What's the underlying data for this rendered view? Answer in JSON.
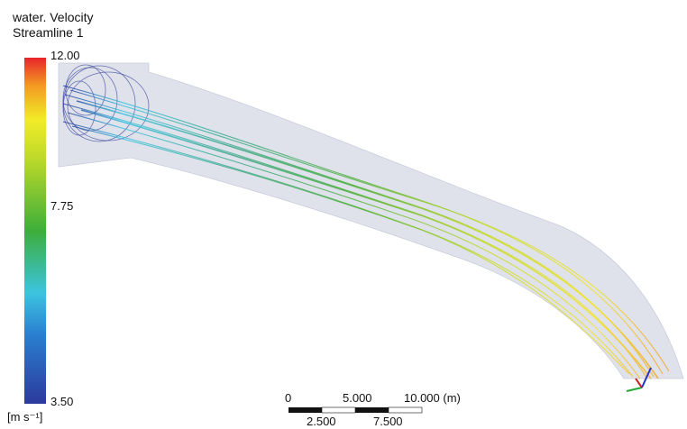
{
  "legend": {
    "title": "water. Velocity",
    "subtitle": "Streamline 1",
    "ticks": [
      "12.00",
      "7.75",
      "3.50"
    ],
    "units": "[m s⁻¹]"
  },
  "scale_bar": {
    "top_labels": [
      "0",
      "5.000",
      "10.000 (m)"
    ],
    "bottom_labels": [
      "2.500",
      "7.500"
    ]
  }
}
